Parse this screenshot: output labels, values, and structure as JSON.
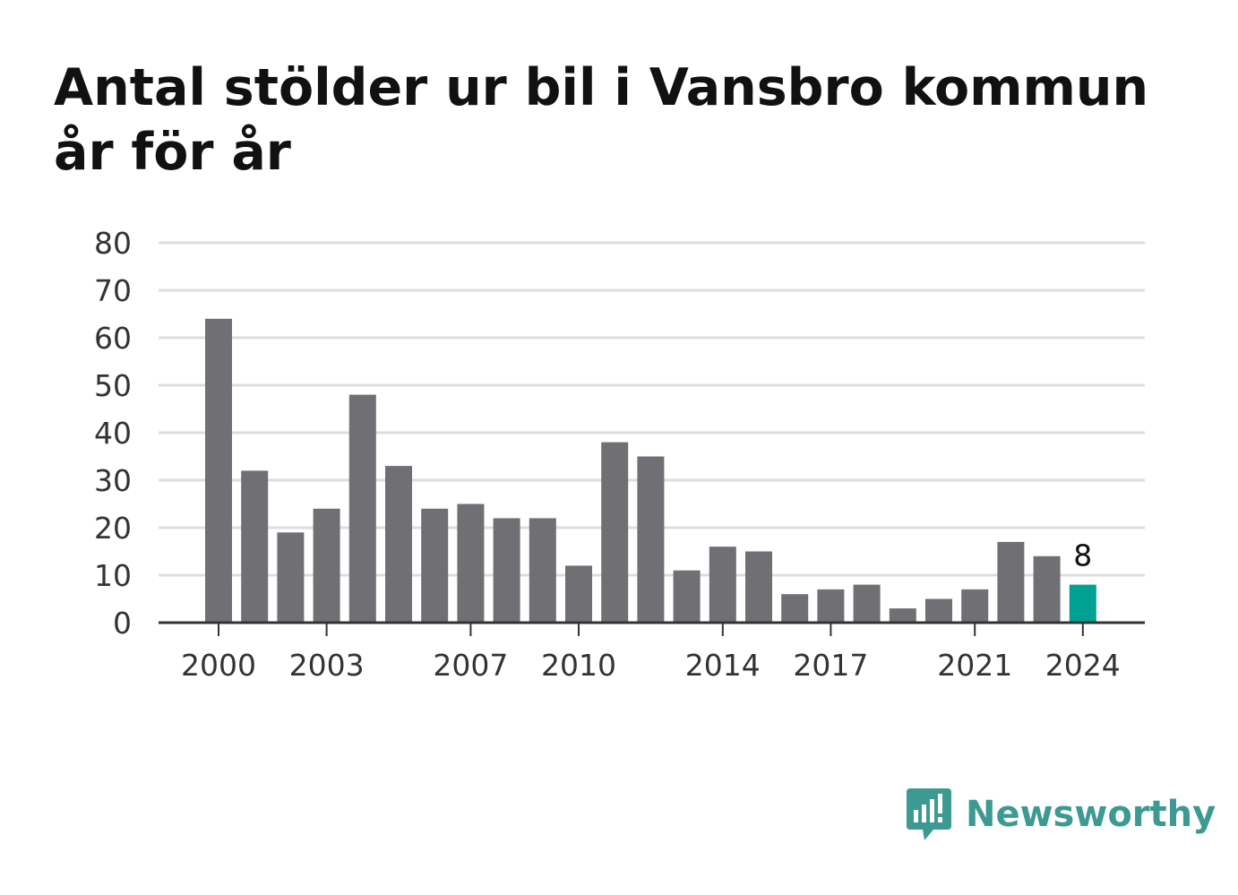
{
  "chart_data": {
    "type": "bar",
    "title": "Antal stölder ur bil i Vansbro kommun år för år",
    "categories": [
      2000,
      2001,
      2002,
      2003,
      2004,
      2005,
      2006,
      2007,
      2008,
      2009,
      2010,
      2011,
      2012,
      2013,
      2014,
      2015,
      2016,
      2017,
      2018,
      2019,
      2020,
      2021,
      2022,
      2023,
      2024
    ],
    "values": [
      64,
      32,
      19,
      24,
      48,
      33,
      24,
      25,
      22,
      22,
      12,
      38,
      35,
      11,
      16,
      15,
      6,
      7,
      8,
      3,
      5,
      7,
      17,
      14,
      8
    ],
    "x_tick_labels": [
      "2000",
      "2003",
      "2007",
      "2010",
      "2014",
      "2017",
      "2021",
      "2024"
    ],
    "y_ticks": [
      0,
      10,
      20,
      30,
      40,
      50,
      60,
      70,
      80
    ],
    "ylim": [
      0,
      80
    ],
    "xlabel": "",
    "ylabel": "",
    "grid": true,
    "highlight": {
      "year": 2024,
      "label": "8"
    },
    "colors": {
      "bar": "#706f74",
      "highlight": "#00a192",
      "grid": "#dddddd",
      "axis": "#333333"
    }
  },
  "brand": {
    "name": "Newsworthy",
    "icon": "newsworthy-logo-icon",
    "color": "#3d9a92"
  }
}
